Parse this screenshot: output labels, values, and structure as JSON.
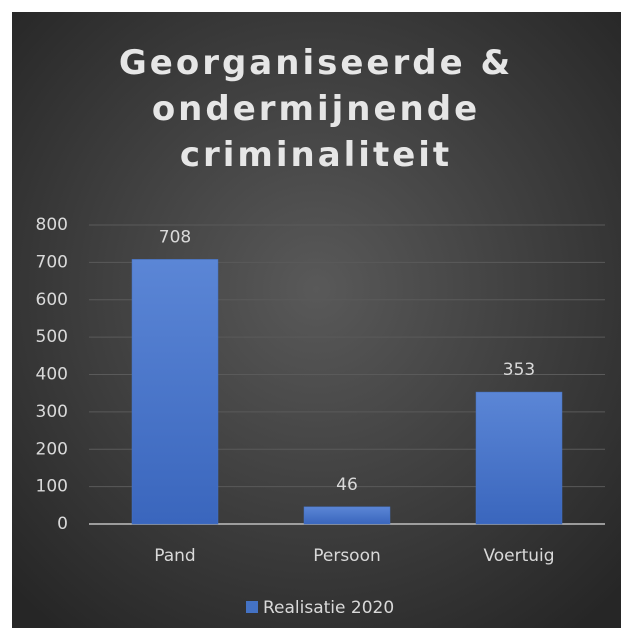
{
  "chart_data": {
    "type": "bar",
    "title": "Georganiseerde & ondermijnende criminaliteit",
    "categories": [
      "Pand",
      "Persoon",
      "Voertuig"
    ],
    "series": [
      {
        "name": "Realisatie 2020",
        "color": "#4472c4",
        "values": [
          708,
          46,
          353
        ]
      }
    ],
    "ylim": [
      0,
      800
    ],
    "yticks": [
      0,
      100,
      200,
      300,
      400,
      500,
      600,
      700,
      800
    ],
    "grid": true,
    "legend": "bottom"
  }
}
